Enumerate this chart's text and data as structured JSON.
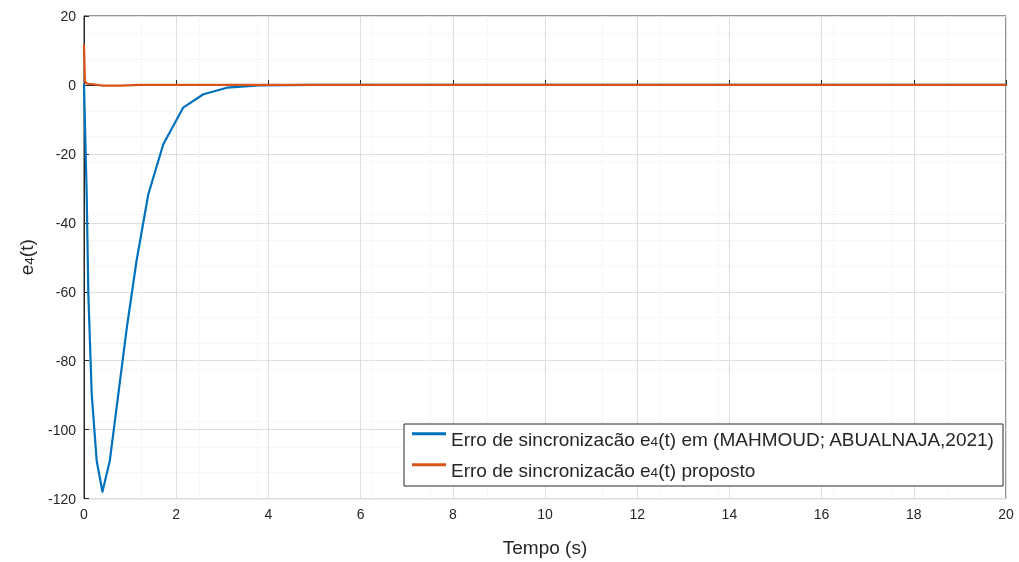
{
  "chart_data": {
    "type": "line",
    "xlabel": "Tempo (s)",
    "ylabel": "e$_{4}$(t)",
    "xlim": [
      0,
      20
    ],
    "xticks": [
      0,
      2,
      4,
      6,
      8,
      10,
      12,
      14,
      16,
      18,
      20
    ],
    "ylim": [
      -120,
      20
    ],
    "yticks": [
      -120,
      -100,
      -80,
      -60,
      -40,
      -20,
      0,
      20
    ],
    "grid": true,
    "legend": "bottom right",
    "marker": "none",
    "line_style": "solid",
    "series": [
      {
        "name": "Erro de sincronizacão e$_{4}$(t) em (MAHMOUD; ABUALNAJA,2021)",
        "color": "#0072bd",
        "x": [
          0,
          0.058,
          0.094,
          0.167,
          0.275,
          0.4,
          0.56,
          0.745,
          0.93,
          1.14,
          1.395,
          1.72,
          2.15,
          2.59,
          3.1,
          3.8,
          5,
          20
        ],
        "values": [
          0,
          -31.6,
          -60.6,
          -89.6,
          -109,
          -118,
          -109,
          -89.6,
          -70.3,
          -51,
          -31.7,
          -17.2,
          -6.6,
          -2.7,
          -0.8,
          -0.1,
          0,
          0
        ]
      },
      {
        "name": "Erro de sincronizacão e$_{4}$(t) proposto",
        "color": "#d95319",
        "x": [
          0,
          0.02,
          0.05,
          0.1,
          0.2,
          0.4,
          0.8,
          1.2,
          20
        ],
        "values": [
          11.5,
          1,
          0.5,
          0.3,
          0.2,
          -0.2,
          -0.2,
          0,
          0
        ]
      }
    ]
  }
}
